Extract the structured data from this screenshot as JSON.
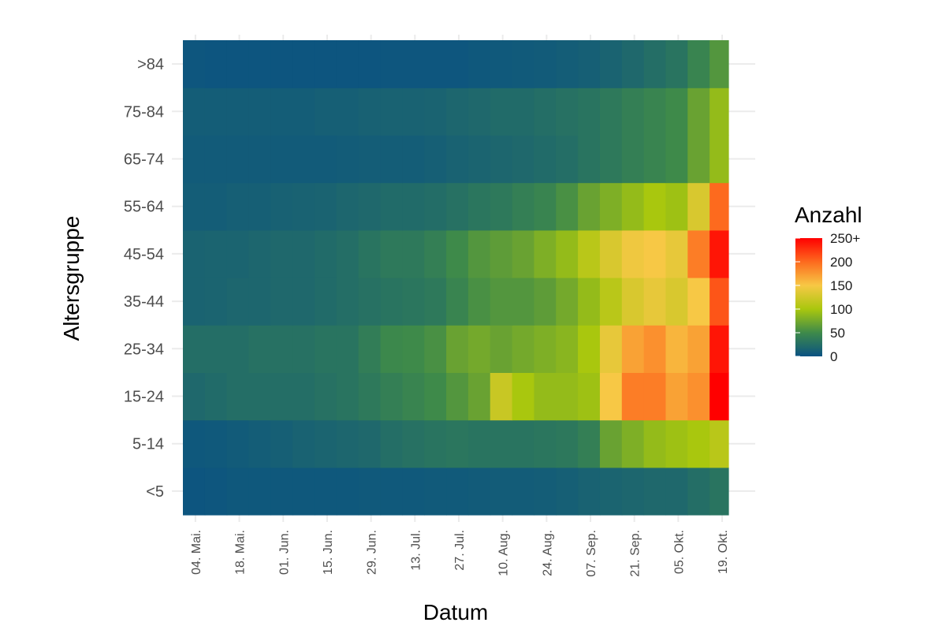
{
  "chart_data": {
    "type": "heatmap",
    "xlabel": "Datum",
    "ylabel": "Altersgruppe",
    "x_range": [
      "2020-04-30",
      "2020-10-21"
    ],
    "x_tick_labels": [
      "04. Mai.",
      "18. Mai.",
      "01. Jun.",
      "15. Jun.",
      "29. Jun.",
      "13. Jul.",
      "27. Jul.",
      "10. Aug.",
      "24. Aug.",
      "07. Sep.",
      "21. Sep.",
      "05. Okt.",
      "19. Okt."
    ],
    "x_tick_dates": [
      "2020-05-04",
      "2020-05-18",
      "2020-06-01",
      "2020-06-15",
      "2020-06-29",
      "2020-07-13",
      "2020-07-27",
      "2020-08-10",
      "2020-08-24",
      "2020-09-07",
      "2020-09-21",
      "2020-10-05",
      "2020-10-19"
    ],
    "y_categories": [
      "<5",
      "5-14",
      "15-24",
      "25-34",
      "35-44",
      "45-54",
      "55-64",
      "65-74",
      "75-84",
      ">84"
    ],
    "legend": {
      "title": "Anzahl",
      "labels": [
        "250+",
        "200",
        "150",
        "100",
        "50",
        "0"
      ],
      "values": [
        250,
        200,
        150,
        100,
        50,
        0
      ],
      "colors": [
        "#ff0000",
        "#fd6a1e",
        "#f7c845",
        "#a9c70e",
        "#3e8a4a",
        "#0a5282"
      ],
      "position": "right"
    },
    "color_scale": {
      "domain": [
        0,
        250
      ],
      "capped_at": 250
    },
    "grid": true,
    "approximate_weekly_counts": {
      "week_start_dates": [
        "2020-04-30",
        "2020-05-07",
        "2020-05-14",
        "2020-05-21",
        "2020-05-28",
        "2020-06-04",
        "2020-06-11",
        "2020-06-18",
        "2020-06-25",
        "2020-07-02",
        "2020-07-09",
        "2020-07-16",
        "2020-07-23",
        "2020-07-30",
        "2020-08-06",
        "2020-08-13",
        "2020-08-20",
        "2020-08-27",
        "2020-09-03",
        "2020-09-10",
        "2020-09-17",
        "2020-09-24",
        "2020-10-01",
        "2020-10-08",
        "2020-10-15"
      ],
      "series": [
        {
          "name": "<5",
          "values": [
            3,
            4,
            5,
            5,
            5,
            5,
            5,
            5,
            6,
            6,
            6,
            7,
            7,
            8,
            9,
            9,
            10,
            12,
            14,
            16,
            18,
            20,
            20,
            25,
            30
          ]
        },
        {
          "name": "5-14",
          "values": [
            5,
            6,
            8,
            10,
            12,
            14,
            16,
            18,
            20,
            25,
            28,
            30,
            32,
            30,
            30,
            30,
            32,
            34,
            40,
            70,
            80,
            90,
            95,
            100,
            110
          ]
        },
        {
          "name": "15-24",
          "values": [
            20,
            22,
            25,
            25,
            25,
            25,
            28,
            30,
            35,
            40,
            45,
            50,
            60,
            70,
            120,
            100,
            90,
            90,
            95,
            150,
            190,
            190,
            170,
            180,
            250
          ]
        },
        {
          "name": "25-34",
          "values": [
            25,
            25,
            25,
            28,
            28,
            28,
            30,
            30,
            38,
            48,
            50,
            55,
            70,
            75,
            70,
            75,
            80,
            85,
            100,
            140,
            170,
            180,
            160,
            170,
            240
          ]
        },
        {
          "name": "35-44",
          "values": [
            15,
            16,
            18,
            18,
            20,
            20,
            22,
            25,
            28,
            30,
            32,
            35,
            45,
            55,
            60,
            60,
            65,
            75,
            90,
            110,
            130,
            140,
            130,
            150,
            210
          ]
        },
        {
          "name": "45-54",
          "values": [
            15,
            16,
            16,
            18,
            20,
            20,
            22,
            25,
            30,
            35,
            35,
            40,
            50,
            60,
            65,
            70,
            80,
            90,
            110,
            130,
            145,
            150,
            140,
            190,
            240
          ]
        },
        {
          "name": "55-64",
          "values": [
            10,
            10,
            12,
            12,
            13,
            14,
            15,
            18,
            20,
            22,
            22,
            24,
            28,
            32,
            35,
            40,
            45,
            55,
            70,
            80,
            90,
            100,
            95,
            130,
            200
          ]
        },
        {
          "name": "65-74",
          "values": [
            8,
            8,
            8,
            8,
            8,
            8,
            8,
            9,
            10,
            10,
            10,
            12,
            14,
            16,
            18,
            20,
            22,
            25,
            30,
            35,
            40,
            45,
            50,
            70,
            90
          ]
        },
        {
          "name": "75-84",
          "values": [
            10,
            10,
            10,
            10,
            10,
            10,
            12,
            12,
            13,
            14,
            14,
            15,
            18,
            20,
            22,
            22,
            25,
            28,
            30,
            35,
            40,
            45,
            50,
            70,
            90
          ]
        },
        {
          "name": ">84",
          "values": [
            4,
            3,
            3,
            3,
            3,
            3,
            3,
            3,
            3,
            4,
            4,
            4,
            4,
            5,
            6,
            7,
            8,
            10,
            12,
            15,
            20,
            25,
            30,
            45,
            60
          ]
        }
      ]
    }
  }
}
